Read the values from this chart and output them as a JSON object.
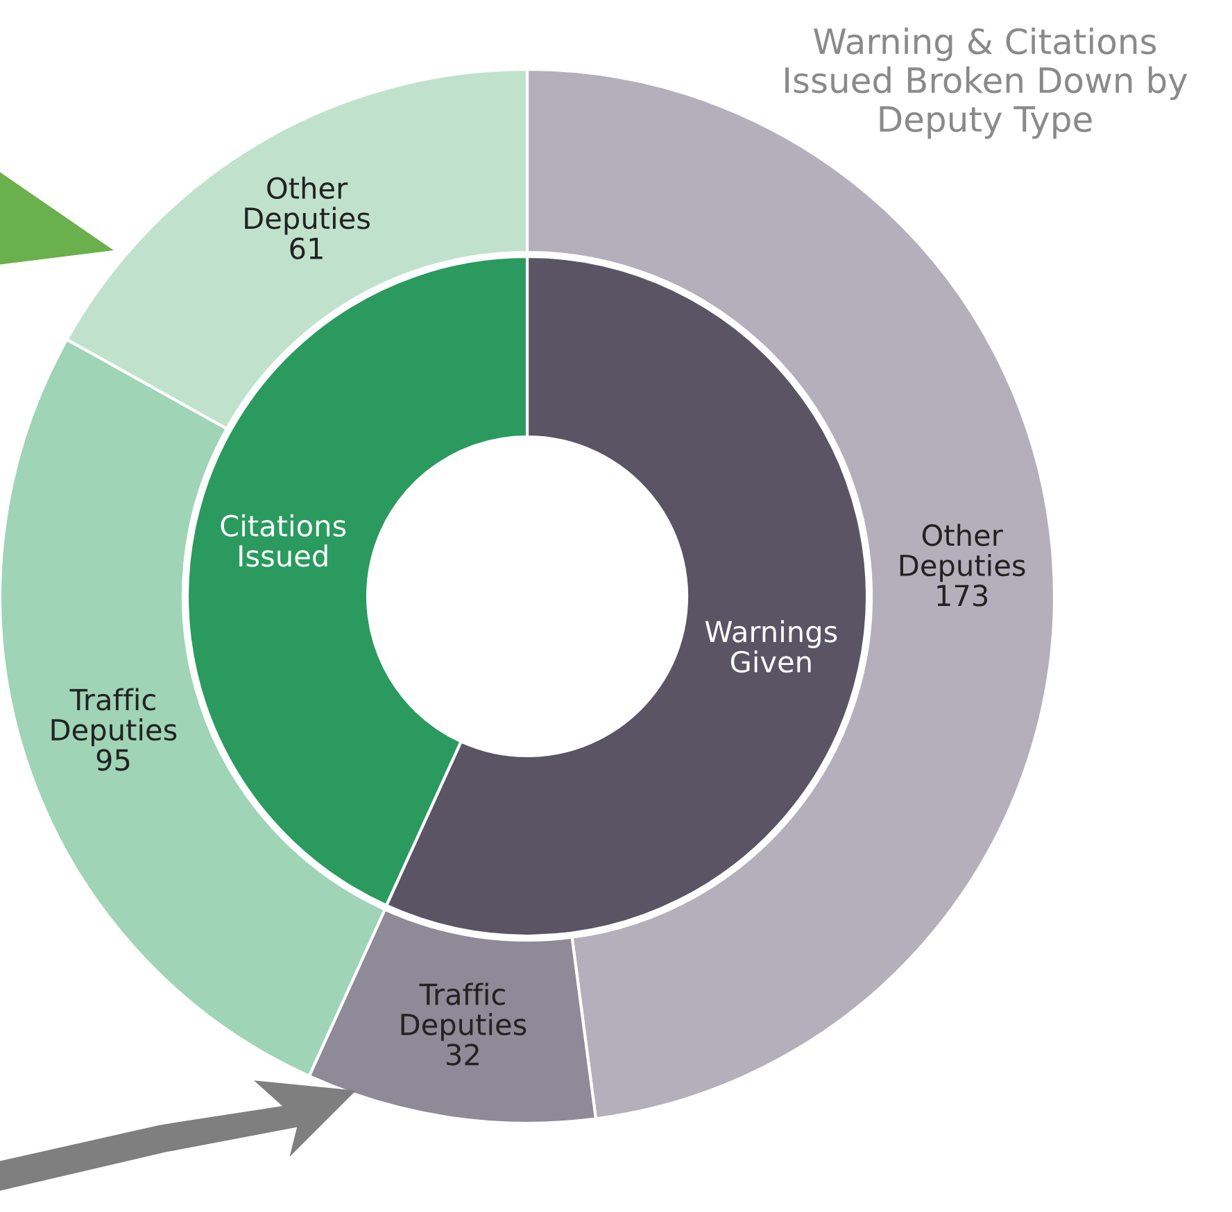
{
  "chart_data": {
    "type": "donut",
    "title": "Warning & Citations\nIssued Broken Down by\nDeputy Type",
    "annotations": [
      "Warnings Given",
      "Citations Issued",
      "Other Deputies",
      "Traffic Deputies",
      "Traffic Deputies",
      "Other Deputies"
    ],
    "series": [
      {
        "values": [
          56.8,
          43.2
        ],
        "colors": [
          "#5a5464",
          "#2a9a5e"
        ]
      },
      {
        "values": [
          173,
          32,
          95,
          61
        ],
        "colors": [
          "#b3b0bb",
          "#8e8a98",
          "#9fd4b6",
          "#c0e2cc"
        ],
        "value_labels": [
          "173",
          "32",
          "95",
          "61"
        ]
      }
    ]
  }
}
